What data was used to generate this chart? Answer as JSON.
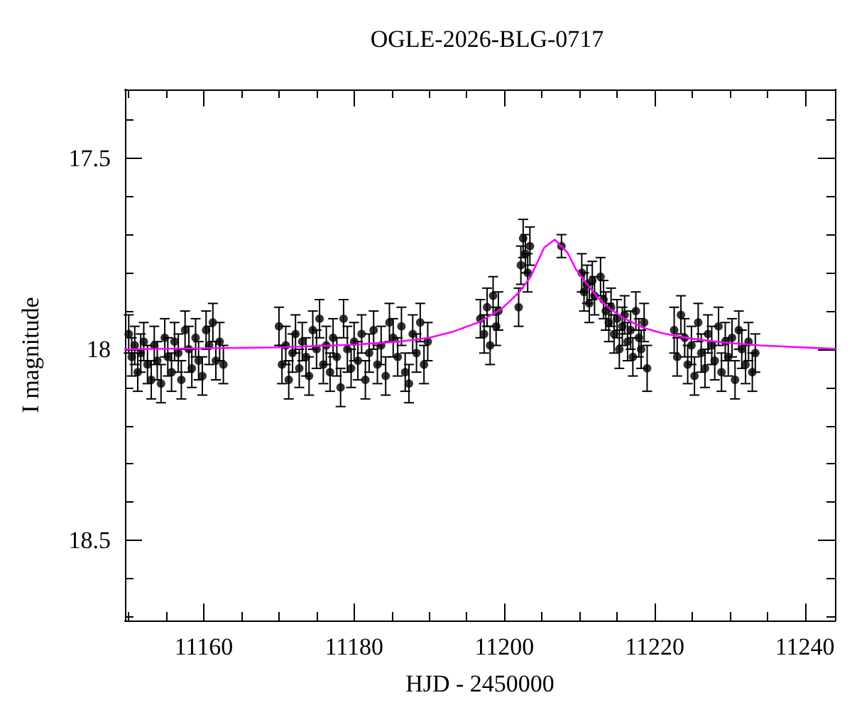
{
  "chart_data": {
    "type": "scatter",
    "title": "OGLE-2026-BLG-0717",
    "xlabel": "HJD - 2450000",
    "ylabel": "I magnitude",
    "xlim": [
      11149.5,
      11244
    ],
    "ylim": [
      18.71,
      17.32
    ],
    "xticks": [
      {
        "value": 11150,
        "label": null
      },
      {
        "value": 11155,
        "label": null
      },
      11160,
      {
        "value": 11165,
        "label": null
      },
      {
        "value": 11170,
        "label": null
      },
      {
        "value": 11175,
        "label": null
      },
      11180,
      {
        "value": 11185,
        "label": null
      },
      {
        "value": 11190,
        "label": null
      },
      {
        "value": 11195,
        "label": null
      },
      11200,
      {
        "value": 11205,
        "label": null
      },
      {
        "value": 11210,
        "label": null
      },
      {
        "value": 11215,
        "label": null
      },
      11220,
      {
        "value": 11225,
        "label": null
      },
      {
        "value": 11230,
        "label": null
      },
      {
        "value": 11235,
        "label": null
      },
      11240
    ],
    "yticks": [
      {
        "value": 17.4,
        "label": null
      },
      17.5,
      {
        "value": 17.6,
        "label": null
      },
      {
        "value": 17.7,
        "label": null
      },
      {
        "value": 17.8,
        "label": null
      },
      {
        "value": 17.9,
        "label": null
      },
      18,
      {
        "value": 18.1,
        "label": null
      },
      {
        "value": 18.2,
        "label": null
      },
      {
        "value": 18.3,
        "label": null
      },
      {
        "value": 18.4,
        "label": null
      },
      18.5,
      {
        "value": 18.6,
        "label": null
      },
      {
        "value": 18.7,
        "label": null
      }
    ],
    "grid": false,
    "marker": "circle",
    "series": [
      {
        "color": "#000000",
        "x": [
          11150.0,
          11150.4,
          11150.8,
          11151.2,
          11151.6,
          11152.0,
          11152.5,
          11153.0,
          11153.4,
          11153.8,
          11154.3,
          11154.8,
          11155.2,
          11155.7,
          11156.1,
          11156.6,
          11157.0,
          11157.5,
          11158.0,
          11158.4,
          11158.9,
          11159.3,
          11159.8,
          11160.3,
          11160.7,
          11161.2,
          11161.6,
          11162.1,
          11162.6,
          11170.0,
          11170.4,
          11170.9,
          11171.3,
          11171.8,
          11172.2,
          11172.7,
          11173.1,
          11173.6,
          11174.0,
          11174.5,
          11175.0,
          11175.4,
          11175.9,
          11176.3,
          11176.8,
          11177.2,
          11177.7,
          11178.2,
          11178.6,
          11179.1,
          11179.6,
          11180.0,
          11180.5,
          11181.0,
          11181.5,
          11182.0,
          11182.6,
          11183.1,
          11183.6,
          11184.2,
          11184.7,
          11185.2,
          11185.8,
          11186.3,
          11186.8,
          11187.3,
          11187.8,
          11188.3,
          11188.8,
          11189.3,
          11189.8,
          11196.8,
          11197.3,
          11197.7,
          11198.1,
          11198.5,
          11198.9,
          11199.2,
          11201.9,
          11202.2,
          11202.5,
          11202.8,
          11203.1,
          11203.4,
          11207.6,
          11210.3,
          11210.6,
          11211.0,
          11211.3,
          11211.7,
          11212.0,
          11212.8,
          11213.2,
          11213.5,
          11213.9,
          11214.2,
          11214.6,
          11215.0,
          11215.3,
          11215.7,
          11216.0,
          11216.4,
          11216.8,
          11217.1,
          11217.5,
          11217.9,
          11218.2,
          11218.6,
          11219.0,
          11222.6,
          11223.0,
          11223.5,
          11224.0,
          11224.4,
          11224.9,
          11225.3,
          11225.8,
          11226.2,
          11226.7,
          11227.1,
          11227.6,
          11228.0,
          11228.5,
          11228.9,
          11229.4,
          11229.8,
          11230.3,
          11230.7,
          11231.2,
          11231.6,
          11232.1,
          11232.5,
          11233.0,
          11233.4
        ],
        "values": [
          17.96,
          18.02,
          17.99,
          18.06,
          18.01,
          17.98,
          18.04,
          18.08,
          17.99,
          18.03,
          18.09,
          17.97,
          18.02,
          18.06,
          17.98,
          18.01,
          18.08,
          17.95,
          18.0,
          18.05,
          17.97,
          18.03,
          18.07,
          17.95,
          17.99,
          17.93,
          18.03,
          17.98,
          18.04,
          17.94,
          18.04,
          17.99,
          18.08,
          18.01,
          17.96,
          18.05,
          17.98,
          18.02,
          18.07,
          17.95,
          18.0,
          17.92,
          18.04,
          17.99,
          18.06,
          17.97,
          18.02,
          18.1,
          17.92,
          18.0,
          18.05,
          17.98,
          18.03,
          17.96,
          18.08,
          18.01,
          17.95,
          18.04,
          17.99,
          18.07,
          17.93,
          17.97,
          18.02,
          17.94,
          18.06,
          18.09,
          17.96,
          18.01,
          17.93,
          18.04,
          17.98,
          17.92,
          17.96,
          17.89,
          17.99,
          17.86,
          17.94,
          17.9,
          17.89,
          17.78,
          17.71,
          17.75,
          17.8,
          17.73,
          17.73,
          17.8,
          17.85,
          17.83,
          17.88,
          17.82,
          17.86,
          17.81,
          17.87,
          17.9,
          17.93,
          17.89,
          17.96,
          17.92,
          18.0,
          17.94,
          17.91,
          17.98,
          17.95,
          18.02,
          17.9,
          17.97,
          18.0,
          17.93,
          18.05,
          17.95,
          18.02,
          17.91,
          17.97,
          18.04,
          17.99,
          18.07,
          17.93,
          18.01,
          18.05,
          17.96,
          17.99,
          18.03,
          17.94,
          18.06,
          17.98,
          18.02,
          17.97,
          18.08,
          17.95,
          18.0,
          18.04,
          17.98,
          18.06,
          18.01
        ],
        "errors": [
          0.05,
          0.05,
          0.05,
          0.05,
          0.05,
          0.05,
          0.05,
          0.05,
          0.05,
          0.05,
          0.05,
          0.05,
          0.05,
          0.05,
          0.05,
          0.05,
          0.05,
          0.05,
          0.06,
          0.05,
          0.05,
          0.05,
          0.05,
          0.05,
          0.05,
          0.05,
          0.05,
          0.05,
          0.05,
          0.05,
          0.05,
          0.05,
          0.05,
          0.05,
          0.05,
          0.05,
          0.05,
          0.05,
          0.05,
          0.05,
          0.05,
          0.05,
          0.05,
          0.05,
          0.05,
          0.05,
          0.05,
          0.05,
          0.05,
          0.06,
          0.05,
          0.05,
          0.05,
          0.05,
          0.05,
          0.05,
          0.05,
          0.05,
          0.05,
          0.05,
          0.05,
          0.05,
          0.05,
          0.05,
          0.05,
          0.05,
          0.05,
          0.05,
          0.05,
          0.05,
          0.05,
          0.05,
          0.05,
          0.05,
          0.05,
          0.05,
          0.05,
          0.05,
          0.05,
          0.05,
          0.05,
          0.05,
          0.05,
          0.05,
          0.03,
          0.05,
          0.05,
          0.05,
          0.05,
          0.05,
          0.05,
          0.05,
          0.05,
          0.05,
          0.05,
          0.05,
          0.05,
          0.05,
          0.05,
          0.05,
          0.05,
          0.05,
          0.05,
          0.05,
          0.05,
          0.05,
          0.05,
          0.05,
          0.06,
          0.06,
          0.05,
          0.05,
          0.05,
          0.05,
          0.05,
          0.05,
          0.05,
          0.05,
          0.05,
          0.05,
          0.05,
          0.05,
          0.05,
          0.05,
          0.05,
          0.05,
          0.05,
          0.05,
          0.05,
          0.05,
          0.05,
          0.05,
          0.05,
          0.05
        ]
      },
      {
        "type": "line",
        "color": "#ff00ff",
        "marker": "none",
        "line_style": "solid",
        "x": [
          11149.5,
          11170,
          11180,
          11186,
          11190,
          11193.3,
          11196.5,
          11199.6,
          11202,
          11203.5,
          11205.3,
          11206.7,
          11208.4,
          11209.5,
          11210.9,
          11212.5,
          11214.1,
          11216,
          11218.5,
          11221,
          11224.8,
          11229,
          11234,
          11244
        ],
        "values": [
          18.0,
          17.995,
          17.988,
          17.98,
          17.97,
          17.953,
          17.93,
          17.895,
          17.85,
          17.81,
          17.734,
          17.713,
          17.747,
          17.79,
          17.827,
          17.866,
          17.895,
          17.92,
          17.944,
          17.958,
          17.972,
          17.982,
          17.99,
          17.999
        ]
      }
    ]
  }
}
